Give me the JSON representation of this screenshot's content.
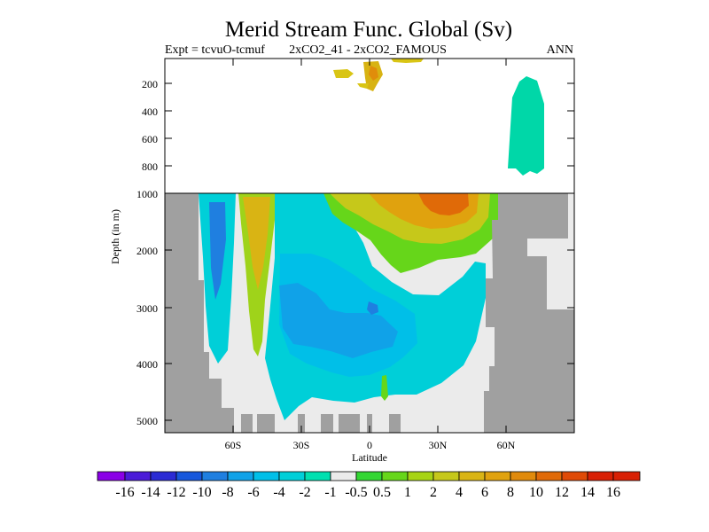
{
  "chart_data": {
    "type": "heatmap",
    "title": "Merid Stream Func. Global (Sv)",
    "subtitle_left": "Expt = tcvuO-tcmuf",
    "subtitle_center": "2xCO2_41 - 2xCO2_FAMOUS",
    "subtitle_right": "ANN",
    "xlabel": "Latitude",
    "ylabel": "Depth (in m)",
    "x_ticks": [
      "60S",
      "30S",
      "0",
      "30N",
      "60N"
    ],
    "y_ticks_upper": [
      "200",
      "400",
      "600",
      "800",
      "1000"
    ],
    "y_ticks_lower": [
      "2000",
      "3000",
      "4000",
      "5000"
    ],
    "colorbar_labels": [
      "-16",
      "-14",
      "-12",
      "-10",
      "-8",
      "-6",
      "-4",
      "-2",
      "-1",
      "-0.5",
      "0.5",
      "1",
      "2",
      "4",
      "6",
      "8",
      "10",
      "12",
      "14",
      "16"
    ],
    "colors": {
      "c_m16": "#8a00e6",
      "c_m14": "#4b1bd8",
      "c_m12": "#2b2bd4",
      "c_m10": "#1757dc",
      "c_m8": "#1f7fe0",
      "c_m6": "#10a2e8",
      "c_m4": "#00bfe8",
      "c_m2": "#00cfd8",
      "c_m1": "#00e0b0",
      "c_m05": "#ebebeb",
      "c_05": "#33d633",
      "c_1": "#66d61a",
      "c_2": "#a7d414",
      "c_4": "#c6c81a",
      "c_6": "#d9b414",
      "c_8": "#e0a20e",
      "c_10": "#e08a0b",
      "c_12": "#e06a08",
      "c_14": "#df4a06",
      "c_16": "#d82004",
      "land": "#a0a0a0",
      "neutral": "#ebebeb"
    }
  }
}
